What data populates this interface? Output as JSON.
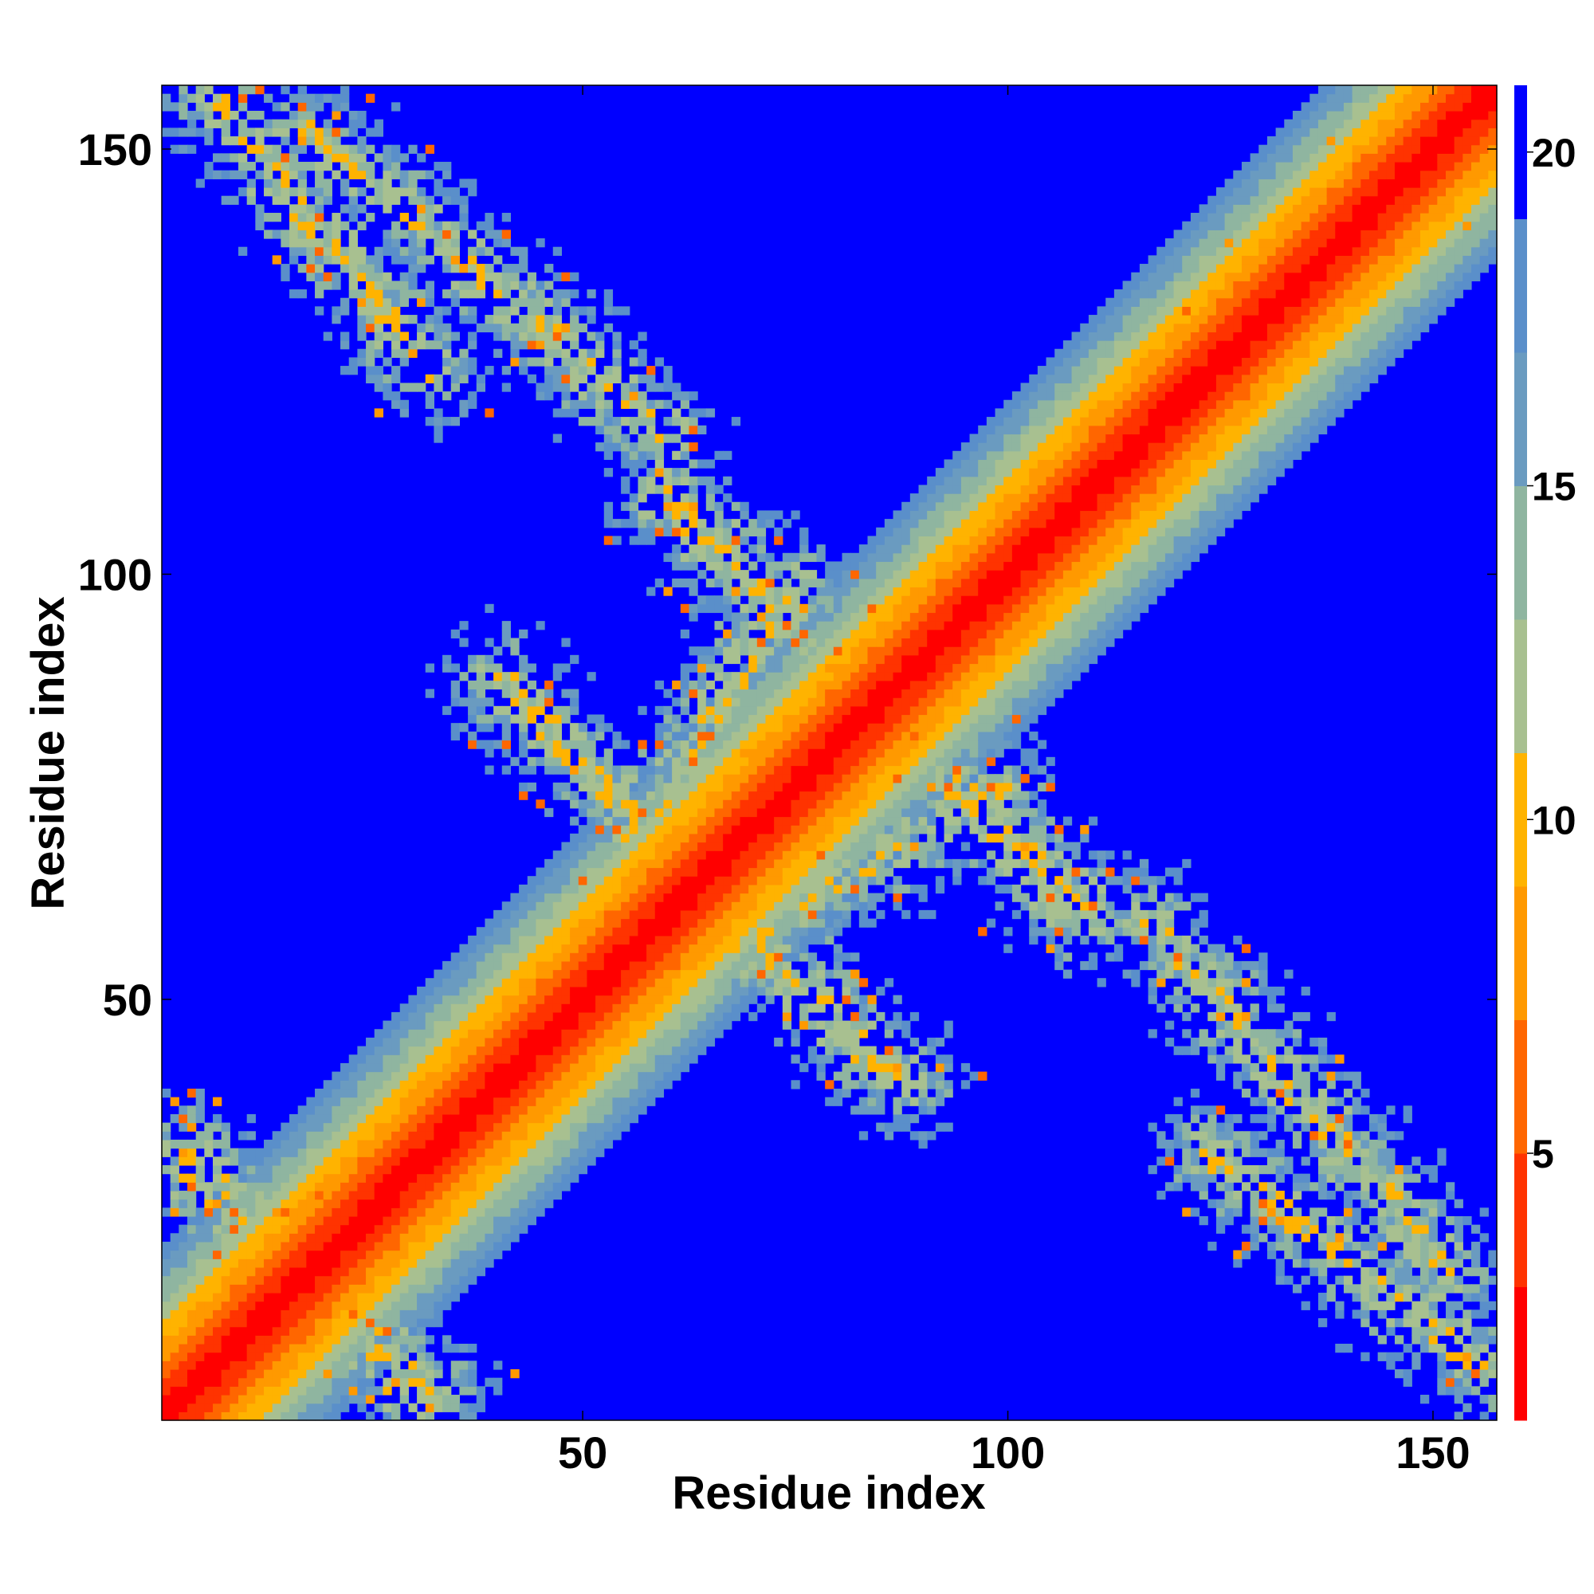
{
  "chart_data": {
    "type": "heatmap",
    "title": "",
    "xlabel": "Residue index",
    "ylabel": "Residue index",
    "n_residues": 157,
    "xlim": [
      1,
      157
    ],
    "ylim": [
      1,
      157
    ],
    "x_ticks": [
      50,
      100,
      150
    ],
    "y_ticks": [
      50,
      100,
      150
    ],
    "colorbar": {
      "range": [
        1,
        21
      ],
      "ticks": [
        5,
        10,
        15,
        20
      ],
      "colors": [
        "#ff0000",
        "#ff3300",
        "#ff6600",
        "#ff9900",
        "#ffb300",
        "#a8c090",
        "#8fb5a0",
        "#6a9bc0",
        "#5a8fca",
        "#0000ff"
      ]
    },
    "structure": {
      "background_value": 21,
      "diagonal": "distance grows with |i - j|; red near diagonal, orange, then blue-grey band up to |i - j| ~ 20",
      "contact_regions": [
        {
          "i": [
            30,
            3
          ],
          "j": [
            3,
            33
          ],
          "note": "antiparallel contacts near N-terminus"
        },
        {
          "i": [
            56,
            75
          ],
          "j": [
            68,
            99
          ],
          "note": "parallel band"
        },
        {
          "i": [
            85,
            40
          ],
          "j": [
            42,
            88
          ],
          "note": "antiparallel arm"
        },
        {
          "i": [
            110,
            60
          ],
          "j": [
            60,
            108
          ],
          "note": "antiparallel arm"
        },
        {
          "i": [
            152,
            116
          ],
          "j": [
            18,
            60
          ],
          "note": "antiparallel arm"
        },
        {
          "i": [
            125,
            152
          ],
          "j": [
            128,
            153
          ],
          "note": "parallel band"
        },
        {
          "i": [
            124,
            158
          ],
          "j": [
            32,
            5
          ],
          "note": "C-terminus contacts"
        }
      ]
    }
  }
}
